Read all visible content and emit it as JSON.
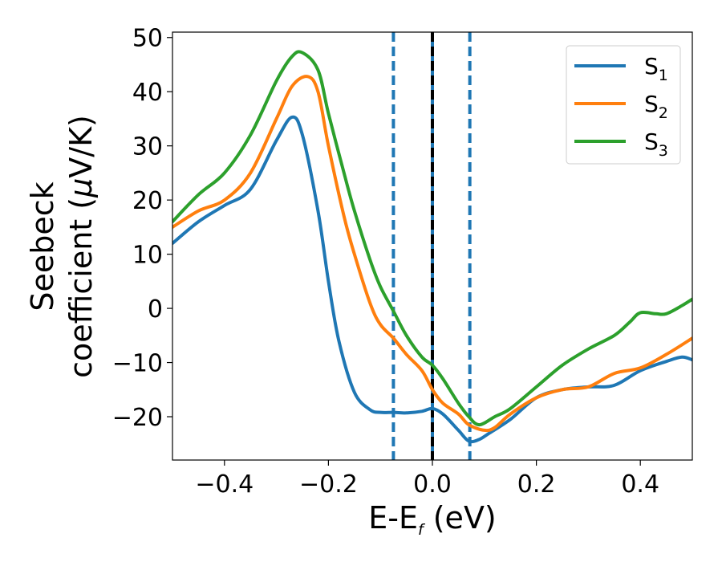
{
  "chart_data": {
    "type": "line",
    "title": "",
    "xlabel_main": "E-E",
    "xlabel_sub": "f",
    "xlabel_unit": " (eV)",
    "ylabel_line1": "Seebeck",
    "ylabel_line2_prefix": "coefficient  (",
    "ylabel_mu": "μ",
    "ylabel_line2_suffix": "V/K)",
    "xlim": [
      -0.5,
      0.5
    ],
    "ylim": [
      -28,
      51
    ],
    "xticks": [
      -0.4,
      -0.2,
      0.0,
      0.2,
      0.4
    ],
    "xtick_labels": [
      "−0.4",
      "−0.2",
      "0.0",
      "0.2",
      "0.4"
    ],
    "yticks": [
      -20,
      -10,
      0,
      10,
      20,
      30,
      40,
      50
    ],
    "ytick_labels": [
      "−20",
      "−10",
      "0",
      "10",
      "20",
      "30",
      "40",
      "50"
    ],
    "grid": false,
    "legend_position": "top-right",
    "vlines": [
      {
        "x": -0.075,
        "style": "dashed",
        "color": "#1f77b4"
      },
      {
        "x": 0.0,
        "style": "solid",
        "color": "#1f77b4"
      },
      {
        "x": 0.0,
        "style": "dashed",
        "color": "#000000"
      },
      {
        "x": 0.072,
        "style": "dashed",
        "color": "#1f77b4"
      }
    ],
    "series": [
      {
        "name": "S",
        "subscript": "1",
        "color": "#1f77b4",
        "x": [
          -0.5,
          -0.45,
          -0.4,
          -0.35,
          -0.3,
          -0.27,
          -0.25,
          -0.22,
          -0.2,
          -0.18,
          -0.15,
          -0.12,
          -0.1,
          -0.075,
          -0.05,
          -0.02,
          0.0,
          0.02,
          0.05,
          0.07,
          0.09,
          0.11,
          0.15,
          0.2,
          0.25,
          0.3,
          0.35,
          0.4,
          0.45,
          0.48,
          0.5
        ],
        "y": [
          12,
          16,
          19,
          22,
          31,
          35.3,
          32,
          18,
          5,
          -6,
          -15.5,
          -18.7,
          -19.2,
          -19.2,
          -19.3,
          -19.0,
          -18.5,
          -19.5,
          -22.5,
          -24.5,
          -24.2,
          -23.0,
          -20.5,
          -16.5,
          -15.0,
          -14.5,
          -14.2,
          -11.5,
          -9.8,
          -9.0,
          -9.5
        ]
      },
      {
        "name": "S",
        "subscript": "2",
        "color": "#ff7f0e",
        "x": [
          -0.5,
          -0.45,
          -0.4,
          -0.35,
          -0.3,
          -0.27,
          -0.24,
          -0.22,
          -0.2,
          -0.17,
          -0.15,
          -0.12,
          -0.1,
          -0.075,
          -0.05,
          -0.02,
          0.0,
          0.02,
          0.05,
          0.07,
          0.1,
          0.12,
          0.15,
          0.2,
          0.25,
          0.3,
          0.35,
          0.4,
          0.45,
          0.5
        ],
        "y": [
          15,
          18,
          20,
          25,
          35,
          41,
          42.8,
          40,
          30,
          17,
          10,
          1,
          -3,
          -5.5,
          -8.5,
          -11.5,
          -15,
          -17.5,
          -19.5,
          -21.5,
          -22.5,
          -22,
          -19.5,
          -16.5,
          -15,
          -14.5,
          -12,
          -11,
          -8.5,
          -5.5
        ]
      },
      {
        "name": "S",
        "subscript": "3",
        "color": "#2ca02c",
        "x": [
          -0.5,
          -0.45,
          -0.4,
          -0.35,
          -0.3,
          -0.27,
          -0.25,
          -0.22,
          -0.2,
          -0.17,
          -0.15,
          -0.12,
          -0.1,
          -0.075,
          -0.05,
          -0.02,
          0.0,
          0.02,
          0.05,
          0.07,
          0.09,
          0.12,
          0.15,
          0.2,
          0.25,
          0.3,
          0.35,
          0.38,
          0.4,
          0.43,
          0.45,
          0.48,
          0.5
        ],
        "y": [
          16,
          21,
          25,
          32,
          42,
          46.5,
          47.2,
          44,
          36,
          25,
          18,
          9,
          4,
          -0.5,
          -5,
          -9,
          -10.5,
          -13,
          -17.5,
          -20,
          -21.5,
          -20,
          -18.5,
          -14.5,
          -10.5,
          -7.5,
          -5,
          -2.5,
          -0.8,
          -1,
          -1,
          0.5,
          1.7
        ]
      }
    ]
  }
}
